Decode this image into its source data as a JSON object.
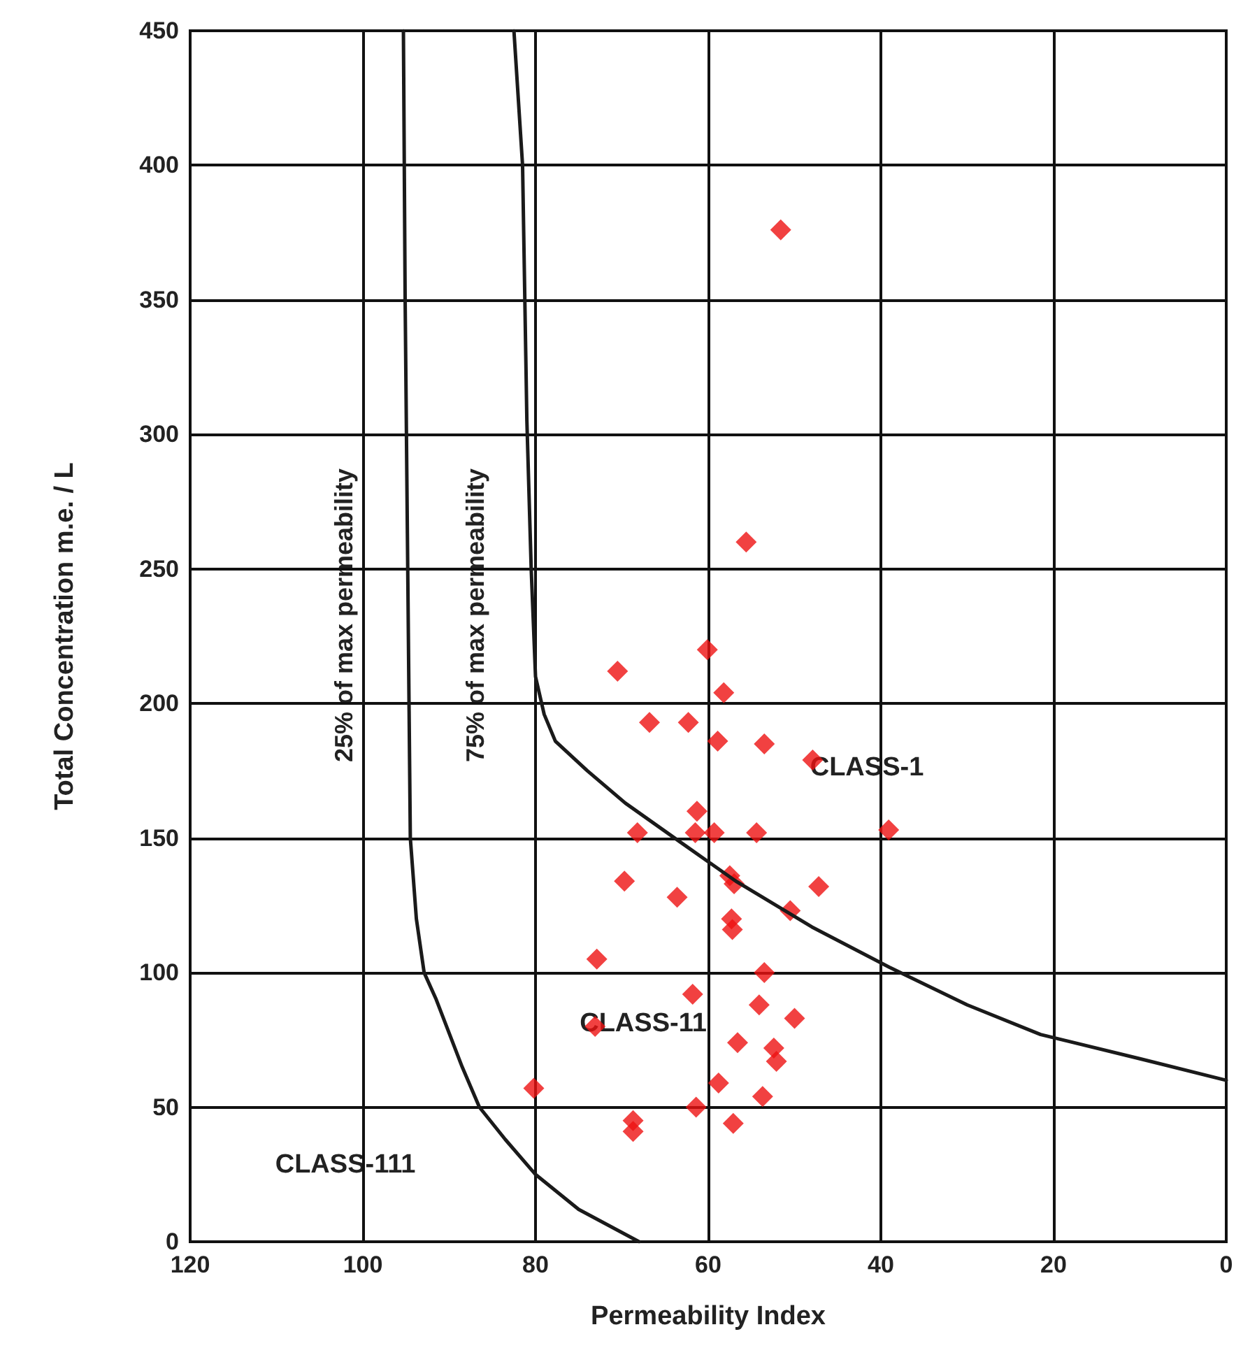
{
  "chart_data": {
    "type": "scatter",
    "xlabel": "Permeability Index",
    "ylabel": "Total Concentration m.e. / L",
    "xlim": [
      120,
      0
    ],
    "ylim": [
      0,
      450
    ],
    "xticks": [
      120,
      100,
      80,
      60,
      40,
      20,
      0
    ],
    "yticks": [
      0,
      50,
      100,
      150,
      200,
      250,
      300,
      350,
      400,
      450
    ],
    "grid": true,
    "marker": "diamond",
    "series": [
      {
        "type": "line",
        "color": "#1a1a1a",
        "marker": "none",
        "x": [
          95.3,
          95.1,
          94.8,
          94.5,
          93.8,
          92.9,
          91.5,
          88.5,
          86.5,
          83.5,
          80,
          75,
          68
        ],
        "values": [
          450,
          350,
          250,
          150,
          120,
          100,
          90,
          65,
          50,
          38,
          25,
          12,
          0
        ]
      },
      {
        "type": "line",
        "color": "#1a1a1a",
        "marker": "none",
        "x": [
          82.5,
          81.5,
          81,
          80.5,
          80,
          79,
          77.7,
          74,
          69.6,
          63,
          56.8,
          48,
          39,
          30,
          21.5,
          10,
          0
        ],
        "values": [
          450,
          400,
          305,
          250,
          210,
          196,
          186,
          175,
          163,
          148,
          134,
          117,
          102,
          88,
          77,
          68,
          60
        ]
      },
      {
        "color": "#ee1111",
        "x": [
          51.6,
          55.6,
          60.1,
          70.5,
          58.2,
          66.8,
          62.3,
          58.9,
          53.5,
          47.9,
          61.3,
          68.2,
          61.5,
          59.3,
          54.4,
          39.1,
          69.7,
          57.5,
          57,
          63.6,
          47.2,
          50.5,
          57.3,
          57.2,
          72.9,
          53.5,
          61.8,
          54.1,
          50,
          73.1,
          56.6,
          52.4,
          52.1,
          80.2,
          58.8,
          53.7,
          61.4,
          68.7,
          68.7,
          57.1
        ],
        "values": [
          376,
          260,
          220,
          212,
          204,
          193,
          193,
          186,
          185,
          179,
          160,
          152,
          152,
          152,
          152,
          153,
          134,
          136,
          133,
          128,
          132,
          123,
          120,
          116,
          105,
          100,
          92,
          88,
          83,
          80,
          74,
          72,
          67,
          57,
          59,
          54,
          50,
          45,
          41,
          44
        ]
      }
    ],
    "annotations": [
      "25% of max permeability",
      "75% of max permeability",
      "CLASS-1",
      "CLASS-11",
      "CLASS-111"
    ]
  }
}
